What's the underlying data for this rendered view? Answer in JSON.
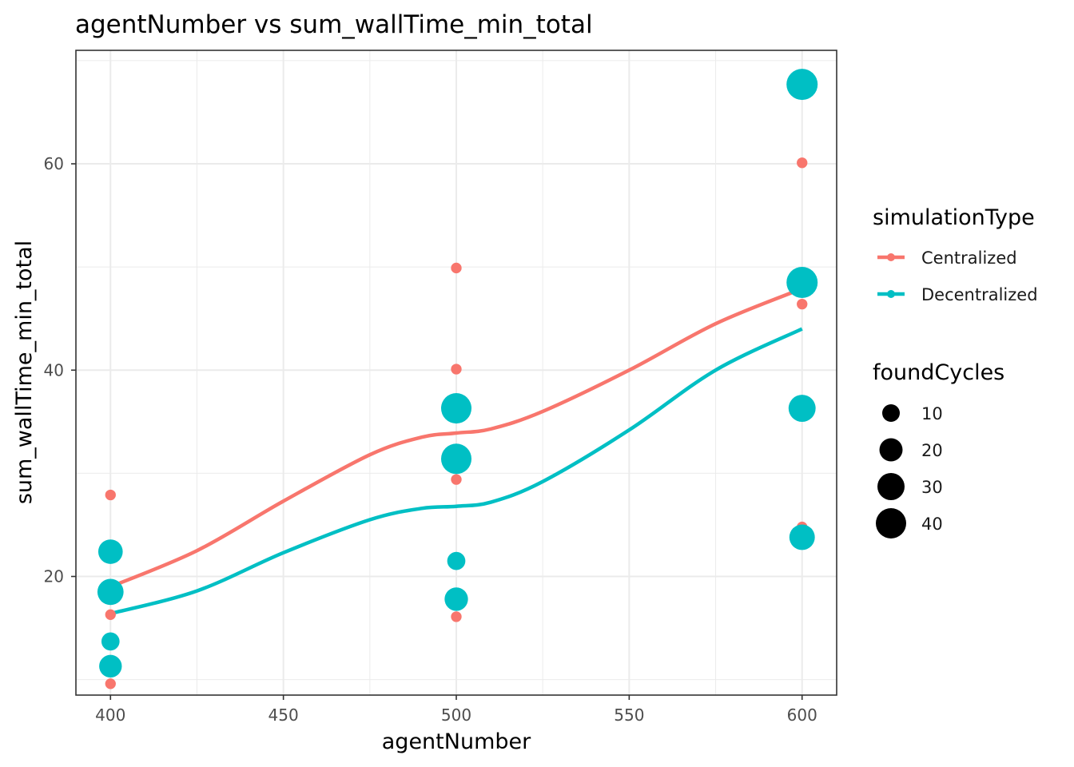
{
  "chart_data": {
    "type": "scatter",
    "title": "agentNumber  vs  sum_wallTime_min_total",
    "xlabel": "agentNumber",
    "ylabel": "sum_wallTime_min_total",
    "xlim": [
      390,
      610
    ],
    "ylim": [
      8.5,
      71
    ],
    "x_ticks": [
      400,
      450,
      500,
      550,
      600
    ],
    "y_ticks": [
      20,
      40,
      60
    ],
    "grid": true,
    "legend_position": "right",
    "color_legend": {
      "title": "simulationType",
      "entries": [
        {
          "label": "Centralized",
          "color": "#F8766D"
        },
        {
          "label": "Decentralized",
          "color": "#00BFC4"
        }
      ]
    },
    "size_legend": {
      "title": "foundCycles",
      "entries": [
        10,
        20,
        30,
        40
      ]
    },
    "series": [
      {
        "name": "Centralized",
        "color": "#F8766D",
        "points": [
          {
            "x": 400,
            "y": 27.9,
            "size": 1
          },
          {
            "x": 400,
            "y": 22.1,
            "size": 1
          },
          {
            "x": 400,
            "y": 16.3,
            "size": 1
          },
          {
            "x": 400,
            "y": 9.6,
            "size": 1
          },
          {
            "x": 500,
            "y": 49.9,
            "size": 1
          },
          {
            "x": 500,
            "y": 40.1,
            "size": 1
          },
          {
            "x": 500,
            "y": 29.4,
            "size": 1
          },
          {
            "x": 500,
            "y": 16.1,
            "size": 1
          },
          {
            "x": 600,
            "y": 60.1,
            "size": 1
          },
          {
            "x": 600,
            "y": 46.4,
            "size": 1
          },
          {
            "x": 600,
            "y": 24.8,
            "size": 1
          }
        ],
        "smooth": [
          {
            "x": 400,
            "y": 19.0
          },
          {
            "x": 425,
            "y": 22.5
          },
          {
            "x": 450,
            "y": 27.3
          },
          {
            "x": 475,
            "y": 31.8
          },
          {
            "x": 490,
            "y": 33.5
          },
          {
            "x": 500,
            "y": 33.9
          },
          {
            "x": 510,
            "y": 34.3
          },
          {
            "x": 525,
            "y": 36.0
          },
          {
            "x": 550,
            "y": 40.0
          },
          {
            "x": 575,
            "y": 44.5
          },
          {
            "x": 600,
            "y": 47.9
          }
        ]
      },
      {
        "name": "Decentralized",
        "color": "#00BFC4",
        "points": [
          {
            "x": 400,
            "y": 22.4,
            "size": 25
          },
          {
            "x": 400,
            "y": 18.5,
            "size": 30
          },
          {
            "x": 400,
            "y": 13.7,
            "size": 10
          },
          {
            "x": 400,
            "y": 11.3,
            "size": 20
          },
          {
            "x": 500,
            "y": 36.3,
            "size": 45
          },
          {
            "x": 500,
            "y": 31.4,
            "size": 45
          },
          {
            "x": 500,
            "y": 21.5,
            "size": 10
          },
          {
            "x": 500,
            "y": 17.8,
            "size": 22
          },
          {
            "x": 600,
            "y": 67.7,
            "size": 48
          },
          {
            "x": 600,
            "y": 48.5,
            "size": 48
          },
          {
            "x": 600,
            "y": 36.3,
            "size": 33
          },
          {
            "x": 600,
            "y": 23.8,
            "size": 28
          }
        ],
        "smooth": [
          {
            "x": 400,
            "y": 16.4
          },
          {
            "x": 425,
            "y": 18.6
          },
          {
            "x": 450,
            "y": 22.3
          },
          {
            "x": 475,
            "y": 25.5
          },
          {
            "x": 490,
            "y": 26.6
          },
          {
            "x": 500,
            "y": 26.8
          },
          {
            "x": 510,
            "y": 27.2
          },
          {
            "x": 525,
            "y": 29.2
          },
          {
            "x": 550,
            "y": 34.2
          },
          {
            "x": 575,
            "y": 40.0
          },
          {
            "x": 600,
            "y": 44.0
          }
        ]
      }
    ]
  }
}
